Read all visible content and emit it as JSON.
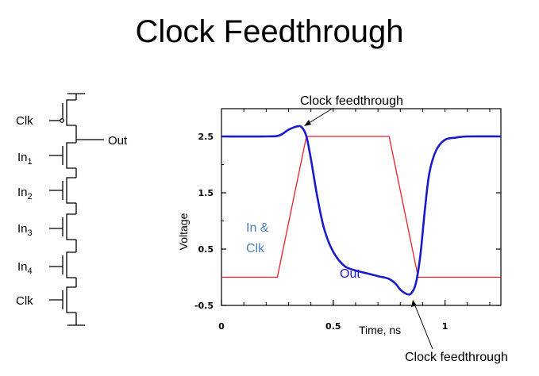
{
  "title": "Clock Feedthrough",
  "circuit": {
    "labels": {
      "clk_top": "Clk",
      "out": "Out",
      "in1": "In",
      "in1_sub": "1",
      "in2": "In",
      "in2_sub": "2",
      "in3": "In",
      "in3_sub": "3",
      "in4": "In",
      "in4_sub": "4",
      "clk_bottom": "Clk"
    }
  },
  "chart_data": {
    "type": "line",
    "xlabel": "Time, ns",
    "ylabel": "Voltage",
    "xlim": [
      0,
      1.25
    ],
    "ylim": [
      -0.5,
      3.0
    ],
    "x_ticks": [
      {
        "value": 0,
        "label": "0"
      },
      {
        "value": 0.5,
        "label": "0.5"
      },
      {
        "value": 1,
        "label": "1"
      }
    ],
    "y_ticks": [
      {
        "value": 2.5,
        "label": "2.5"
      },
      {
        "value": 1.5,
        "label": "1.5"
      },
      {
        "value": 0.5,
        "label": "0.5"
      },
      {
        "value": -0.5,
        "label": "-0.5"
      }
    ],
    "series": [
      {
        "name": "In & Clk",
        "color": "#e8202a",
        "points": [
          [
            0,
            0
          ],
          [
            0.25,
            0
          ],
          [
            0.38,
            2.5
          ],
          [
            0.75,
            2.5
          ],
          [
            0.88,
            0
          ],
          [
            1.25,
            0
          ]
        ]
      },
      {
        "name": "Out",
        "color": "#1a1acc",
        "points": [
          [
            0,
            2.5
          ],
          [
            0.2,
            2.5
          ],
          [
            0.26,
            2.52
          ],
          [
            0.3,
            2.62
          ],
          [
            0.34,
            2.68
          ],
          [
            0.36,
            2.66
          ],
          [
            0.38,
            2.5
          ],
          [
            0.4,
            2.1
          ],
          [
            0.43,
            1.4
          ],
          [
            0.46,
            0.85
          ],
          [
            0.5,
            0.45
          ],
          [
            0.55,
            0.2
          ],
          [
            0.6,
            0.12
          ],
          [
            0.65,
            0.07
          ],
          [
            0.7,
            0.02
          ],
          [
            0.75,
            -0.03
          ],
          [
            0.78,
            -0.12
          ],
          [
            0.8,
            -0.22
          ],
          [
            0.83,
            -0.3
          ],
          [
            0.85,
            -0.28
          ],
          [
            0.87,
            -0.1
          ],
          [
            0.89,
            0.4
          ],
          [
            0.91,
            1.2
          ],
          [
            0.93,
            1.85
          ],
          [
            0.96,
            2.25
          ],
          [
            1.0,
            2.44
          ],
          [
            1.05,
            2.48
          ],
          [
            1.1,
            2.5
          ],
          [
            1.25,
            2.5
          ]
        ]
      }
    ],
    "annotations": {
      "top": "Clock feedthrough",
      "bottom": "Clock feedthrough",
      "in_clk_line1": "In &",
      "in_clk_line2": "Clk",
      "out": "Out"
    },
    "grid": false
  }
}
